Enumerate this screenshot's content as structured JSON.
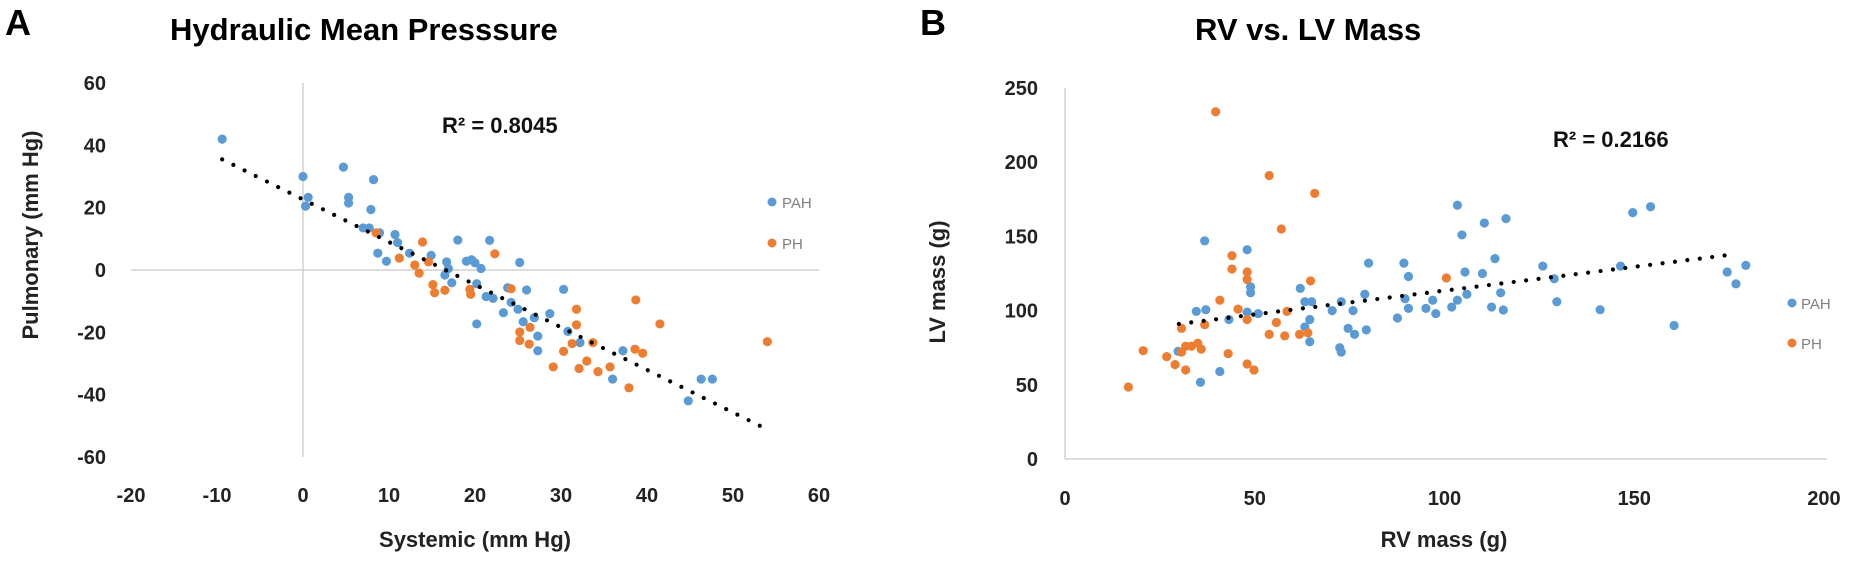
{
  "colors": {
    "PAH": "#5B9BD5",
    "PH": "#ED7D31",
    "trend": "#000000",
    "axis": "#d0d0d0"
  },
  "chart_data": [
    {
      "panel": "A",
      "type": "scatter",
      "title": "Hydraulic Mean Presssure",
      "xlabel": "Systemic (mm Hg)",
      "ylabel": "Pulmonary  (mm Hg)",
      "xlim": [
        -20,
        60
      ],
      "ylim": [
        -60,
        60
      ],
      "xticks": [
        "-20",
        "-10",
        "0",
        "10",
        "20",
        "30",
        "40",
        "50",
        "60"
      ],
      "yticks": [
        "-60",
        "-40",
        "-20",
        "0",
        "20",
        "40",
        "60"
      ],
      "grid": false,
      "legend": {
        "placement": "right",
        "entries": [
          "PAH",
          "PH"
        ]
      },
      "annotation": "R² = 0.8045",
      "trendline": {
        "type": "linear",
        "x": [
          -9.4,
          53.5
        ],
        "y": [
          35.5,
          -50.5
        ]
      },
      "series": [
        {
          "name": "PAH",
          "points": [
            [
              -9.4,
              42
            ],
            [
              0,
              30
            ],
            [
              0.6,
              23.3
            ],
            [
              0.3,
              20.5
            ],
            [
              4.7,
              33
            ],
            [
              5.3,
              23.3
            ],
            [
              5.3,
              21.5
            ],
            [
              8.2,
              29
            ],
            [
              7.9,
              19.4
            ],
            [
              7,
              13.5
            ],
            [
              7.7,
              13.5
            ],
            [
              8.9,
              11.9
            ],
            [
              8.7,
              5.4
            ],
            [
              9.7,
              2.8
            ],
            [
              10.7,
              11.4
            ],
            [
              11,
              8.8
            ],
            [
              12.4,
              5.4
            ],
            [
              14.9,
              4.7
            ],
            [
              16.7,
              2.6
            ],
            [
              16.9,
              0.5
            ],
            [
              16.5,
              -1.6
            ],
            [
              17.3,
              -4.1
            ],
            [
              18,
              9.6
            ],
            [
              19,
              2.8
            ],
            [
              19.6,
              3.3
            ],
            [
              20,
              2.3
            ],
            [
              20.7,
              0.5
            ],
            [
              20.2,
              -4.4
            ],
            [
              21.7,
              9.5
            ],
            [
              25.2,
              2.4
            ],
            [
              21.3,
              -8.5
            ],
            [
              22.1,
              -9.1
            ],
            [
              23.8,
              -5.7
            ],
            [
              24.2,
              -10.4
            ],
            [
              23.3,
              -13.7
            ],
            [
              25,
              -12.6
            ],
            [
              20.2,
              -17.3
            ],
            [
              26,
              -6.4
            ],
            [
              25.6,
              -16.6
            ],
            [
              26.9,
              -15.3
            ],
            [
              27.3,
              -21.2
            ],
            [
              27.3,
              -25.9
            ],
            [
              28.7,
              -14
            ],
            [
              30.3,
              -6.2
            ],
            [
              30.8,
              -19.7
            ],
            [
              32.2,
              -23.3
            ],
            [
              36,
              -35
            ],
            [
              37.2,
              -25.9
            ],
            [
              44.8,
              -42
            ],
            [
              46.3,
              -35
            ],
            [
              47.6,
              -35
            ]
          ]
        },
        {
          "name": "PH",
          "points": [
            [
              8.5,
              11.9
            ],
            [
              13.9,
              9
            ],
            [
              22.3,
              5.2
            ],
            [
              11.2,
              3.8
            ],
            [
              13,
              1.6
            ],
            [
              13.5,
              -1
            ],
            [
              14.6,
              2.6
            ],
            [
              15.1,
              -4.7
            ],
            [
              15.3,
              -7.3
            ],
            [
              16.5,
              -6.5
            ],
            [
              19.4,
              -6.2
            ],
            [
              19.5,
              -7.8
            ],
            [
              24.2,
              -6
            ],
            [
              25.2,
              -19.9
            ],
            [
              25.2,
              -22.6
            ],
            [
              26.3,
              -23.8
            ],
            [
              26.4,
              -18.4
            ],
            [
              29.1,
              -31.1
            ],
            [
              30.3,
              -26.1
            ],
            [
              31.3,
              -23.6
            ],
            [
              31.8,
              -12.6
            ],
            [
              31.8,
              -17.6
            ],
            [
              32.1,
              -31.6
            ],
            [
              33,
              -29.2
            ],
            [
              34.3,
              -32.6
            ],
            [
              35.7,
              -31.1
            ],
            [
              33.7,
              -23.3
            ],
            [
              37.9,
              -37.8
            ],
            [
              38.6,
              -25.4
            ],
            [
              39.5,
              -26.7
            ],
            [
              38.7,
              -9.6
            ],
            [
              41.5,
              -17.3
            ],
            [
              54,
              -23
            ]
          ]
        }
      ]
    },
    {
      "panel": "B",
      "type": "scatter",
      "title": "RV vs. LV Mass",
      "xlabel": "RV mass (g)",
      "ylabel": "LV mass (g)",
      "xlim": [
        0,
        200
      ],
      "ylim": [
        0,
        250
      ],
      "xticks": [
        "0",
        "50",
        "100",
        "150",
        "200"
      ],
      "yticks": [
        "0",
        "50",
        "100",
        "150",
        "200",
        "250"
      ],
      "grid": false,
      "legend": {
        "placement": "right",
        "entries": [
          "PAH",
          "PH"
        ]
      },
      "annotation": "R² = 0.2166",
      "trendline": {
        "type": "linear",
        "x": [
          30,
          176.5
        ],
        "y": [
          91,
          138
        ]
      },
      "series": [
        {
          "name": "PAH",
          "points": [
            [
              36.8,
              147
            ],
            [
              48,
              141
            ],
            [
              48.9,
              116
            ],
            [
              48.9,
              112
            ],
            [
              34.6,
              99.5
            ],
            [
              37.1,
              100.6
            ],
            [
              43.2,
              94
            ],
            [
              48,
              99
            ],
            [
              50.9,
              98
            ],
            [
              62,
              115
            ],
            [
              63.2,
              106
            ],
            [
              65,
              106
            ],
            [
              64.5,
              94
            ],
            [
              63.2,
              89
            ],
            [
              64.5,
              79
            ],
            [
              70.4,
              100
            ],
            [
              72.8,
              106
            ],
            [
              75.9,
              100
            ],
            [
              74.6,
              88
            ],
            [
              76.3,
              84
            ],
            [
              72.4,
              75
            ],
            [
              72.8,
              72
            ],
            [
              79.4,
              87
            ],
            [
              80,
              132
            ],
            [
              79,
              111
            ],
            [
              29.8,
              72.5
            ],
            [
              40.8,
              59
            ],
            [
              35.7,
              51.7
            ],
            [
              87.6,
              95
            ],
            [
              89.3,
              132
            ],
            [
              90.5,
              123
            ],
            [
              89.6,
              108
            ],
            [
              90.5,
              101.5
            ],
            [
              95.1,
              101.5
            ],
            [
              96.9,
              107
            ],
            [
              97.7,
              98
            ],
            [
              101.9,
              102.4
            ],
            [
              103.4,
              107
            ],
            [
              105.9,
              111
            ],
            [
              105.4,
              126
            ],
            [
              103.4,
              171
            ],
            [
              104.6,
              151
            ],
            [
              110,
              125
            ],
            [
              110.5,
              159
            ],
            [
              112.4,
              102.4
            ],
            [
              114.8,
              112
            ],
            [
              115.5,
              100.4
            ],
            [
              113.3,
              135
            ],
            [
              116.2,
              162
            ],
            [
              125.9,
              130
            ],
            [
              128.9,
              121.5
            ],
            [
              129.6,
              106
            ],
            [
              141,
              100.6
            ],
            [
              146.4,
              130
            ],
            [
              149.6,
              166
            ],
            [
              154.3,
              170
            ],
            [
              160.5,
              90
            ],
            [
              174.5,
              126
            ],
            [
              176.8,
              118
            ],
            [
              179.4,
              130.5
            ]
          ]
        },
        {
          "name": "PH",
          "points": [
            [
              39.7,
              234
            ],
            [
              53.8,
              191
            ],
            [
              65.8,
              179
            ],
            [
              57,
              155
            ],
            [
              44,
              137
            ],
            [
              44,
              128
            ],
            [
              48,
              126
            ],
            [
              48,
              121
            ],
            [
              64.7,
              120
            ],
            [
              40.8,
              107
            ],
            [
              45.6,
              101
            ],
            [
              58.5,
              99.5
            ],
            [
              30.7,
              88
            ],
            [
              36.8,
              90.5
            ],
            [
              48,
              94
            ],
            [
              55.7,
              92
            ],
            [
              53.8,
              84
            ],
            [
              57.9,
              83
            ],
            [
              61.8,
              84
            ],
            [
              64,
              85
            ],
            [
              20.6,
              73
            ],
            [
              26.8,
              69
            ],
            [
              29,
              63.6
            ],
            [
              31.8,
              60
            ],
            [
              30.7,
              72
            ],
            [
              31.8,
              76
            ],
            [
              33.3,
              76
            ],
            [
              35,
              78
            ],
            [
              35.9,
              74
            ],
            [
              43,
              71
            ],
            [
              48,
              64
            ],
            [
              49.8,
              60
            ],
            [
              16.7,
              48.5
            ],
            [
              100.5,
              122
            ]
          ]
        }
      ]
    }
  ]
}
